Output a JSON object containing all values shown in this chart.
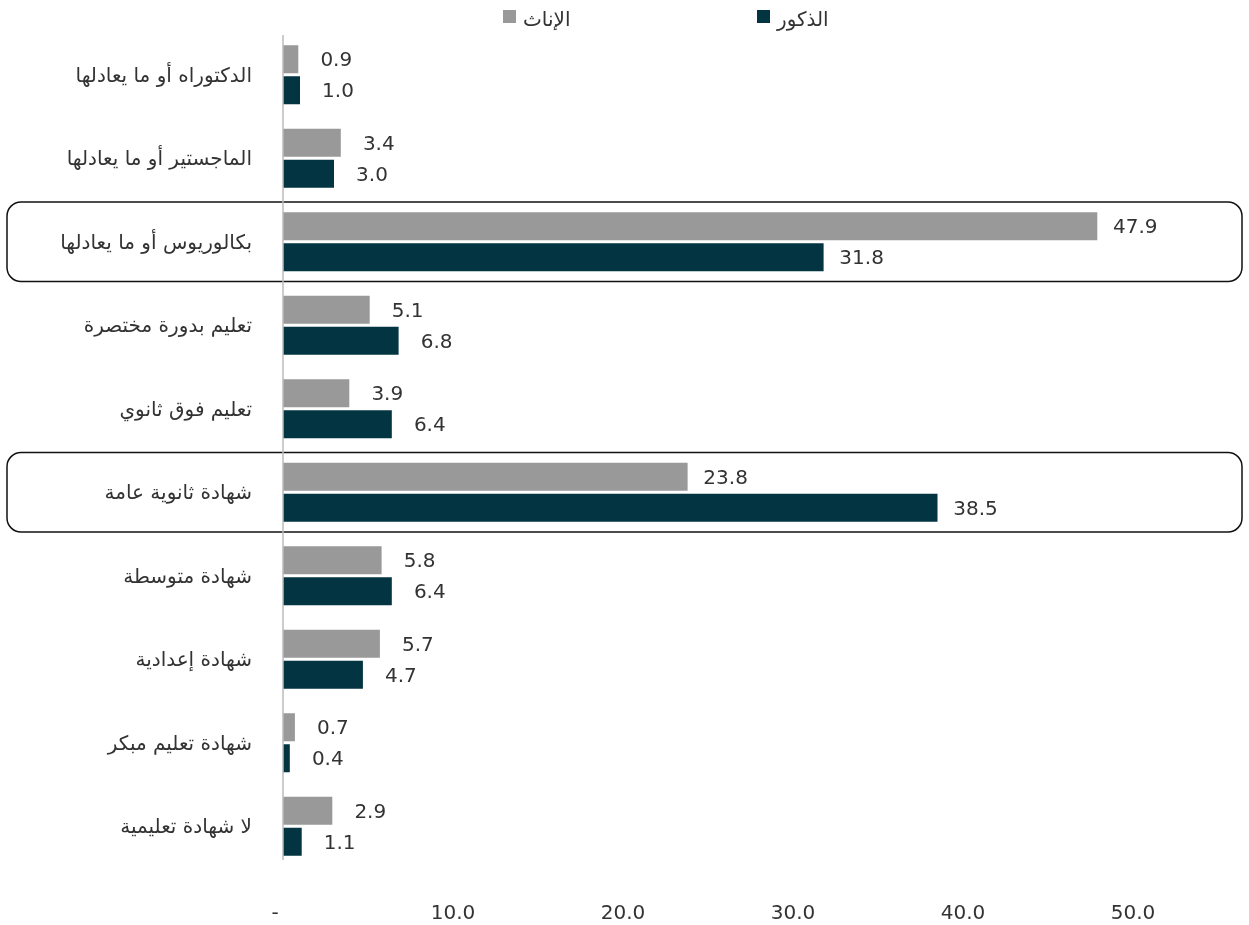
{
  "chart_data": {
    "type": "bar",
    "orientation": "horizontal",
    "categories": [
      "الدكتوراه أو ما يعادلها",
      "الماجستير أو ما يعادلها",
      "بكالوريوس أو ما يعادلها",
      "تعليم بدورة مختصرة",
      "تعليم فوق ثانوي",
      "شهادة ثانوية عامة",
      "شهادة متوسطة",
      "شهادة إعدادية",
      "شهادة تعليم مبكر",
      "لا شهادة تعليمية"
    ],
    "series": [
      {
        "name": "الإناث",
        "color": "#999999",
        "values": [
          0.9,
          3.4,
          47.9,
          5.1,
          3.9,
          23.8,
          5.8,
          5.7,
          0.7,
          2.9
        ]
      },
      {
        "name": "الذكور",
        "color": "#023442",
        "values": [
          1.0,
          3.0,
          31.8,
          6.8,
          6.4,
          38.5,
          6.4,
          4.7,
          0.4,
          1.1
        ]
      }
    ],
    "xlim": [
      0,
      50
    ],
    "xticks": [
      {
        "value": 0,
        "label": "-"
      },
      {
        "value": 10,
        "label": "10.0"
      },
      {
        "value": 20,
        "label": "20.0"
      },
      {
        "value": 30,
        "label": "30.0"
      },
      {
        "value": 40,
        "label": "40.0"
      },
      {
        "value": 50,
        "label": "50.0"
      }
    ],
    "value_labels": [
      [
        "0.9",
        "3.4",
        "47.9",
        "5.1",
        "3.9",
        "23.8",
        "5.8",
        "5.7",
        "0.7",
        "2.9"
      ],
      [
        "1.0",
        "3.0",
        "31.8",
        "6.8",
        "6.4",
        "38.5",
        "6.4",
        "4.7",
        "0.4",
        "1.1"
      ]
    ],
    "legend": "top",
    "grid": false
  }
}
